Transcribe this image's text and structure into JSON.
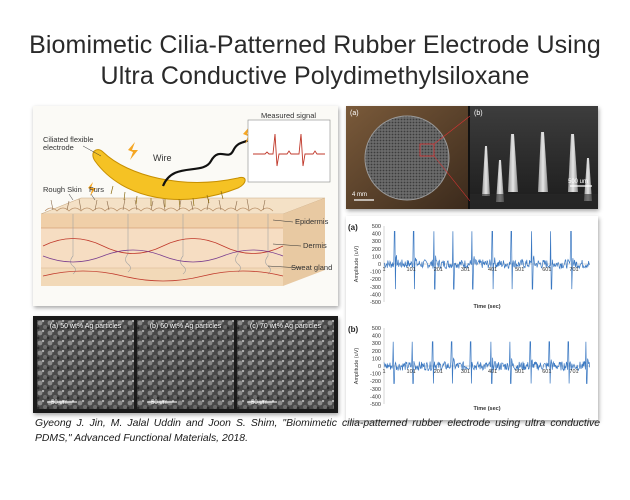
{
  "title": {
    "line1": "Biomimetic Cilia-Patterned Rubber Electrode Using",
    "line2": "Ultra Conductive Polydimethylsiloxane"
  },
  "schematic": {
    "ciliated_label": "Ciliated flexible\nelectrode",
    "wire_label": "Wire",
    "measured_label": "Measured signal",
    "rough_skin_label": "Rough Skin",
    "furs_label": "Furs",
    "epidermis_label": "Epidermis",
    "dermis_label": "Dermis",
    "sweat_label": "Sweat gland"
  },
  "photo": {
    "tag_a": "(a)",
    "tag_b": "(b)",
    "scale_a": "4 mm",
    "scale_b": "500 um"
  },
  "sem": [
    {
      "caption": "(a) 50 wt% Ag particles",
      "scale": "50 um"
    },
    {
      "caption": "(b) 60 wt% Ag particles",
      "scale": "50 um"
    },
    {
      "caption": "(c) 70 wt% Ag particles",
      "scale": "50 um"
    }
  ],
  "chart_data": [
    {
      "type": "line",
      "tag": "(a)",
      "ylabel": "Amplitude (uV)",
      "xlabel": "Time (sec)",
      "yticks": [
        "500",
        "400",
        "300",
        "200",
        "100",
        "0",
        "-100",
        "-200",
        "-300",
        "-400",
        "-500"
      ],
      "xticks": [
        "1",
        "101",
        "201",
        "301",
        "401",
        "501",
        "601",
        "701"
      ],
      "ylim": [
        -500,
        500
      ],
      "xlim": [
        1,
        760
      ],
      "color": "#3a78c2",
      "peaks_x": [
        40,
        110,
        185,
        255,
        325,
        400,
        470,
        545,
        615,
        690
      ],
      "peak_high": 430,
      "peak_low": -330
    },
    {
      "type": "line",
      "tag": "(b)",
      "ylabel": "Amplitude (uV)",
      "xlabel": "Time (sec)",
      "yticks": [
        "500",
        "400",
        "300",
        "200",
        "100",
        "0",
        "-100",
        "-200",
        "-300",
        "-400",
        "-500"
      ],
      "xticks": [
        "1",
        "101",
        "201",
        "301",
        "401",
        "501",
        "601",
        "701"
      ],
      "ylim": [
        -500,
        500
      ],
      "xlim": [
        1,
        760
      ],
      "color": "#3a78c2",
      "peaks_x": [
        35,
        105,
        180,
        250,
        320,
        395,
        465,
        540,
        610,
        680,
        745
      ],
      "peak_high": 320,
      "peak_low": -230
    }
  ],
  "citation": "Gyeong J. Jin, M. Jalal Uddin and Joon S. Shim, \"Biomimetic cilia-patterned rubber electrode using ultra conductive PDMS,\" Advanced Functional Materials, 2018."
}
